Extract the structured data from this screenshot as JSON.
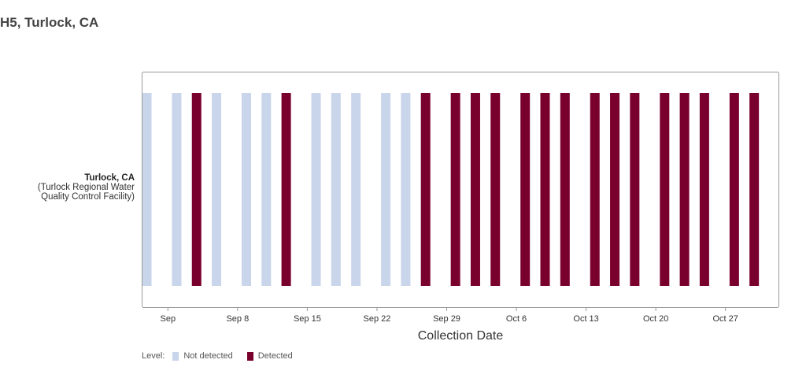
{
  "title": "H5, Turlock, CA",
  "site": {
    "name": "Turlock, CA",
    "facility_line1": "(Turlock Regional Water",
    "facility_line2": "Quality Control Facility)"
  },
  "colors": {
    "not_detected": "#c9d5ea",
    "detected": "#79002d",
    "frame": "#999999",
    "axis_text": "#333333"
  },
  "legend": {
    "label": "Level:",
    "not_detected": "Not detected",
    "detected": "Detected"
  },
  "chart_data": {
    "type": "bar",
    "title": "H5, Turlock, CA",
    "xlabel": "Collection Date",
    "ylabel": "",
    "category": "Turlock, CA",
    "xlim": [
      "2024-08-30",
      "2024-11-01"
    ],
    "x_ticks": [
      {
        "date": "2024-09-01",
        "label": "Sep"
      },
      {
        "date": "2024-09-08",
        "label": "Sep 8"
      },
      {
        "date": "2024-09-15",
        "label": "Sep 15"
      },
      {
        "date": "2024-09-22",
        "label": "Sep 22"
      },
      {
        "date": "2024-09-29",
        "label": "Sep 29"
      },
      {
        "date": "2024-10-06",
        "label": "Oct 6"
      },
      {
        "date": "2024-10-13",
        "label": "Oct 13"
      },
      {
        "date": "2024-10-20",
        "label": "Oct 20"
      },
      {
        "date": "2024-10-27",
        "label": "Oct 27"
      }
    ],
    "samples": [
      {
        "date": "2024-08-30",
        "level": "Not detected"
      },
      {
        "date": "2024-09-02",
        "level": "Not detected"
      },
      {
        "date": "2024-09-04",
        "level": "Detected"
      },
      {
        "date": "2024-09-06",
        "level": "Not detected"
      },
      {
        "date": "2024-09-09",
        "level": "Not detected"
      },
      {
        "date": "2024-09-11",
        "level": "Not detected"
      },
      {
        "date": "2024-09-13",
        "level": "Detected"
      },
      {
        "date": "2024-09-16",
        "level": "Not detected"
      },
      {
        "date": "2024-09-18",
        "level": "Not detected"
      },
      {
        "date": "2024-09-20",
        "level": "Not detected"
      },
      {
        "date": "2024-09-23",
        "level": "Not detected"
      },
      {
        "date": "2024-09-25",
        "level": "Not detected"
      },
      {
        "date": "2024-09-27",
        "level": "Detected"
      },
      {
        "date": "2024-09-30",
        "level": "Detected"
      },
      {
        "date": "2024-10-02",
        "level": "Detected"
      },
      {
        "date": "2024-10-04",
        "level": "Detected"
      },
      {
        "date": "2024-10-07",
        "level": "Detected"
      },
      {
        "date": "2024-10-09",
        "level": "Detected"
      },
      {
        "date": "2024-10-11",
        "level": "Detected"
      },
      {
        "date": "2024-10-14",
        "level": "Detected"
      },
      {
        "date": "2024-10-16",
        "level": "Detected"
      },
      {
        "date": "2024-10-18",
        "level": "Detected"
      },
      {
        "date": "2024-10-21",
        "level": "Detected"
      },
      {
        "date": "2024-10-23",
        "level": "Detected"
      },
      {
        "date": "2024-10-25",
        "level": "Detected"
      },
      {
        "date": "2024-10-28",
        "level": "Detected"
      },
      {
        "date": "2024-10-30",
        "level": "Detected"
      }
    ]
  }
}
